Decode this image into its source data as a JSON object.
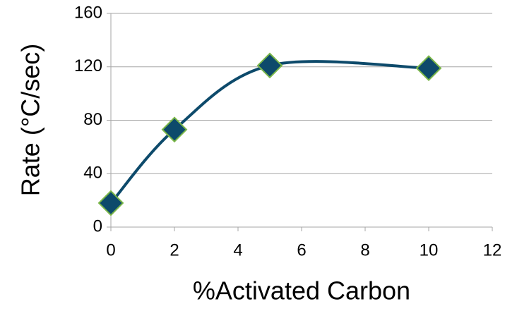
{
  "chart_data": {
    "type": "scatter_smooth",
    "x_label": "%Activated Carbon",
    "y_label": "Rate (°C/sec)",
    "x": [
      0,
      2,
      5,
      10
    ],
    "series": [
      {
        "color": "#0d4a6b",
        "marker_edge_color": "#7ab648",
        "values": [
          18,
          73,
          121,
          119
        ]
      }
    ],
    "xlim": [
      0,
      12
    ],
    "xticks": [
      0,
      2,
      4,
      6,
      8,
      10,
      12
    ],
    "ylim": [
      0,
      160
    ],
    "yticks": [
      0,
      40,
      80,
      120,
      160
    ],
    "grid": true
  }
}
